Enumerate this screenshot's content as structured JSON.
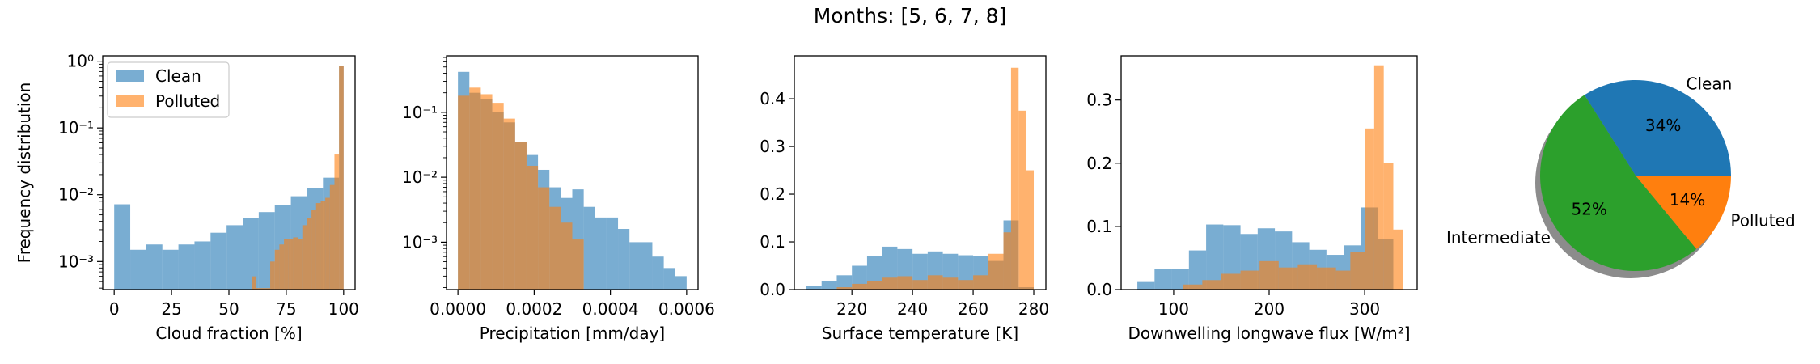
{
  "suptitle": "Months: [5, 6, 7, 8]",
  "colors": {
    "clean": "#1f77b4",
    "polluted": "#ff7f0e",
    "intermediate": "#2ca02c",
    "shadow": "#7f7f7f"
  },
  "chart_data": [
    {
      "type": "histogram",
      "scale": "log",
      "xlabel": "Cloud fraction [%]",
      "ylabel": "Frequency distribution",
      "xlim": [
        -5,
        105
      ],
      "ylim_log10": [
        -3.42,
        0.08
      ],
      "xticks": [
        0,
        25,
        50,
        75,
        100
      ],
      "xtick_labels": [
        "0",
        "25",
        "50",
        "75",
        "100"
      ],
      "yticks": [
        -3,
        -2,
        -1,
        0
      ],
      "ytick_labels": [
        "10⁻³",
        "10⁻²",
        "10⁻¹",
        "10⁰"
      ],
      "legend": {
        "position": "upper-left",
        "entries": [
          "Clean",
          "Polluted"
        ]
      },
      "series": [
        {
          "name": "Clean",
          "bins": [
            0,
            7,
            14,
            21,
            28,
            35,
            42,
            49,
            56,
            63,
            70,
            77,
            84,
            91,
            98,
            100
          ],
          "values": [
            0.0072,
            0.0015,
            0.0018,
            0.0015,
            0.0018,
            0.002,
            0.0027,
            0.0035,
            0.0045,
            0.0055,
            0.007,
            0.0095,
            0.0125,
            0.018,
            0.85
          ]
        },
        {
          "name": "Polluted",
          "bins": [
            60,
            62,
            64,
            66,
            68,
            70,
            72,
            74,
            76,
            78,
            80,
            82,
            84,
            86,
            88,
            90,
            92,
            94,
            96,
            98,
            100
          ],
          "values": [
            0.0006,
            0.0004,
            0.0004,
            0.0004,
            0.001,
            0.0015,
            0.0018,
            0.0022,
            0.0022,
            0.0023,
            0.0022,
            0.0035,
            0.0045,
            0.006,
            0.0075,
            0.008,
            0.009,
            0.014,
            0.04,
            0.85
          ]
        }
      ]
    },
    {
      "type": "histogram",
      "scale": "log",
      "xlabel": "Precipitation [mm/day]",
      "ylabel": "",
      "xlim": [
        -3e-05,
        0.00063
      ],
      "ylim_log10": [
        -3.73,
        -0.13
      ],
      "xticks": [
        0,
        0.0002,
        0.0004,
        0.0006
      ],
      "xtick_labels": [
        "0.0000",
        "0.0002",
        "0.0004",
        "0.0006"
      ],
      "yticks": [
        -3,
        -2,
        -1
      ],
      "ytick_labels": [
        "10⁻³",
        "10⁻²",
        "10⁻¹"
      ],
      "series": [
        {
          "name": "Clean",
          "bins": [
            0,
            3e-05,
            6e-05,
            9e-05,
            0.00012,
            0.00015,
            0.00018,
            0.00021,
            0.00024,
            0.00027,
            0.0003,
            0.00033,
            0.00036,
            0.00039,
            0.00042,
            0.00045,
            0.00048,
            0.00051,
            0.00054,
            0.00057,
            0.0006
          ],
          "values": [
            0.42,
            0.2,
            0.16,
            0.1,
            0.07,
            0.035,
            0.022,
            0.013,
            0.007,
            0.0048,
            0.0065,
            0.0035,
            0.0024,
            0.0024,
            0.0016,
            0.001,
            0.001,
            0.0006,
            0.0004,
            0.0003
          ]
        },
        {
          "name": "Polluted",
          "bins": [
            0,
            3e-05,
            6e-05,
            9e-05,
            0.00012,
            0.00015,
            0.00018,
            0.00021,
            0.00024,
            0.00027,
            0.0003,
            0.00033
          ],
          "values": [
            0.18,
            0.24,
            0.19,
            0.14,
            0.08,
            0.035,
            0.015,
            0.007,
            0.0035,
            0.002,
            0.0011
          ]
        }
      ]
    },
    {
      "type": "histogram",
      "scale": "linear",
      "xlabel": "Surface temperature [K]",
      "ylabel": "",
      "xlim": [
        201,
        284
      ],
      "ylim": [
        0,
        0.49
      ],
      "xticks": [
        220,
        240,
        260,
        280
      ],
      "xtick_labels": [
        "220",
        "240",
        "260",
        "280"
      ],
      "yticks": [
        0,
        0.1,
        0.2,
        0.3,
        0.4
      ],
      "ytick_labels": [
        "0.0",
        "0.1",
        "0.2",
        "0.3",
        "0.4"
      ],
      "series": [
        {
          "name": "Clean",
          "bins": [
            205,
            210,
            215,
            220,
            225,
            230,
            235,
            240,
            245,
            250,
            255,
            260,
            265,
            270,
            275,
            280
          ],
          "values": [
            0.008,
            0.018,
            0.03,
            0.05,
            0.07,
            0.09,
            0.085,
            0.075,
            0.08,
            0.075,
            0.072,
            0.07,
            0.06,
            0.145,
            0.005
          ]
        },
        {
          "name": "Polluted",
          "bins": [
            215,
            220,
            225,
            230,
            235,
            240,
            245,
            250,
            255,
            260,
            265,
            270,
            272.5,
            275,
            277.5,
            280
          ],
          "values": [
            0.005,
            0.012,
            0.018,
            0.025,
            0.028,
            0.02,
            0.03,
            0.025,
            0.02,
            0.03,
            0.075,
            0.12,
            0.465,
            0.375,
            0.25
          ]
        }
      ]
    },
    {
      "type": "histogram",
      "scale": "linear",
      "xlabel": "Downwelling longwave flux [W/m²]",
      "ylabel": "",
      "xlim": [
        45,
        355
      ],
      "ylim": [
        0,
        0.37
      ],
      "xticks": [
        100,
        200,
        300
      ],
      "xtick_labels": [
        "100",
        "200",
        "300"
      ],
      "yticks": [
        0,
        0.1,
        0.2,
        0.3
      ],
      "ytick_labels": [
        "0.0",
        "0.1",
        "0.2",
        "0.3"
      ],
      "series": [
        {
          "name": "Clean",
          "bins": [
            62,
            80,
            98,
            116,
            134,
            152,
            170,
            188,
            206,
            224,
            242,
            260,
            278,
            296,
            314,
            330
          ],
          "values": [
            0.012,
            0.032,
            0.033,
            0.062,
            0.103,
            0.102,
            0.088,
            0.097,
            0.092,
            0.075,
            0.063,
            0.055,
            0.07,
            0.13,
            0.08
          ]
        },
        {
          "name": "Polluted",
          "bins": [
            110,
            130,
            150,
            170,
            190,
            210,
            230,
            250,
            270,
            285,
            300,
            310,
            320,
            330,
            340
          ],
          "values": [
            0.008,
            0.015,
            0.025,
            0.03,
            0.045,
            0.035,
            0.04,
            0.035,
            0.03,
            0.06,
            0.255,
            0.355,
            0.2,
            0.095
          ]
        }
      ]
    },
    {
      "type": "pie",
      "shadow": true,
      "slices": [
        {
          "label": "Clean",
          "pct_label": "34%",
          "value": 34,
          "color": "#1f77b4"
        },
        {
          "label": "Intermediate",
          "pct_label": "52%",
          "value": 52,
          "color": "#2ca02c"
        },
        {
          "label": "Polluted",
          "pct_label": "14%",
          "value": 14,
          "color": "#ff7f0e"
        }
      ]
    }
  ]
}
